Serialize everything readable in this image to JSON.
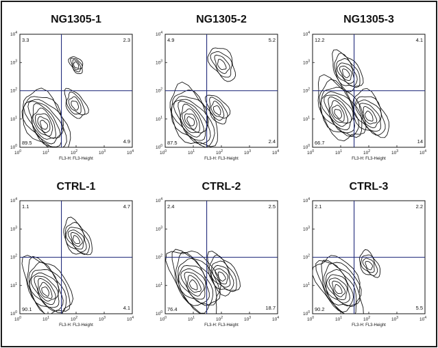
{
  "x_axis_label": "FL3-H: FL3-Height",
  "tick_labels": {
    "base": "10",
    "exponents": [
      "0",
      "1",
      "2",
      "3",
      "4"
    ]
  },
  "chart_data": [
    {
      "type": "contour",
      "title": "NG1305-1",
      "xlabel": "FL3-H: FL3-Height",
      "xscale": "log",
      "yscale": "log",
      "xlim": [
        1,
        10000
      ],
      "ylim": [
        1,
        10000
      ],
      "gate": {
        "x": 30,
        "y": 100
      },
      "quadrants": {
        "upper_left": "3.3",
        "upper_right": "2.3",
        "lower_left": "89.5",
        "lower_right": "4.9"
      },
      "populations": [
        {
          "x": 7,
          "y": 6,
          "spread": 1.0
        },
        {
          "x": 90,
          "y": 30,
          "spread": 0.35
        },
        {
          "x": 100,
          "y": 800,
          "spread": 0.12
        }
      ]
    },
    {
      "type": "contour",
      "title": "NG1305-2",
      "xlabel": "FL3-H: FL3-Height",
      "xscale": "log",
      "yscale": "log",
      "xlim": [
        1,
        10000
      ],
      "ylim": [
        1,
        10000
      ],
      "gate": {
        "x": 30,
        "y": 100
      },
      "quadrants": {
        "upper_left": "4.9",
        "upper_right": "5.2",
        "lower_left": "87.5",
        "lower_right": "2.4"
      },
      "populations": [
        {
          "x": 8,
          "y": 8,
          "spread": 1.0
        },
        {
          "x": 70,
          "y": 20,
          "spread": 0.35
        },
        {
          "x": 100,
          "y": 800,
          "spread": 0.45
        }
      ]
    },
    {
      "type": "contour",
      "title": "NG1305-3",
      "xlabel": "FL3-H: FL3-Height",
      "xscale": "log",
      "yscale": "log",
      "xlim": [
        1,
        10000
      ],
      "ylim": [
        1,
        10000
      ],
      "gate": {
        "x": 30,
        "y": 100
      },
      "quadrants": {
        "upper_left": "12.2",
        "upper_right": "4.1",
        "lower_left": "66.7",
        "lower_right": "14"
      },
      "populations": [
        {
          "x": 8,
          "y": 15,
          "spread": 1.0
        },
        {
          "x": 100,
          "y": 12,
          "spread": 0.7
        },
        {
          "x": 15,
          "y": 400,
          "spread": 0.55
        }
      ]
    },
    {
      "type": "contour",
      "title": "CTRL-1",
      "xlabel": "FL3-H: FL3-Height",
      "xscale": "log",
      "yscale": "log",
      "xlim": [
        1,
        10000
      ],
      "ylim": [
        1,
        10000
      ],
      "gate": {
        "x": 30,
        "y": 100
      },
      "quadrants": {
        "upper_left": "1.1",
        "upper_right": "4.7",
        "lower_left": "90.1",
        "lower_right": "4.1"
      },
      "populations": [
        {
          "x": 8,
          "y": 6,
          "spread": 1.0
        },
        {
          "x": 100,
          "y": 400,
          "spread": 0.5
        }
      ]
    },
    {
      "type": "contour",
      "title": "CTRL-2",
      "xlabel": "FL3-H: FL3-Height",
      "xscale": "log",
      "yscale": "log",
      "xlim": [
        1,
        10000
      ],
      "ylim": [
        1,
        10000
      ],
      "gate": {
        "x": 30,
        "y": 100
      },
      "quadrants": {
        "upper_left": "2.4",
        "upper_right": "2.5",
        "lower_left": "76.4",
        "lower_right": "18.7"
      },
      "populations": [
        {
          "x": 10,
          "y": 10,
          "spread": 1.1
        },
        {
          "x": 100,
          "y": 20,
          "spread": 0.6
        }
      ]
    },
    {
      "type": "contour",
      "title": "CTRL-3",
      "xlabel": "FL3-H: FL3-Height",
      "xscale": "log",
      "yscale": "log",
      "xlim": [
        1,
        10000
      ],
      "ylim": [
        1,
        10000
      ],
      "gate": {
        "x": 30,
        "y": 100
      },
      "quadrants": {
        "upper_left": "2.1",
        "upper_right": "2.2",
        "lower_left": "90.2",
        "lower_right": "5.5"
      },
      "populations": [
        {
          "x": 8,
          "y": 7,
          "spread": 1.0
        },
        {
          "x": 100,
          "y": 50,
          "spread": 0.3
        }
      ]
    }
  ]
}
